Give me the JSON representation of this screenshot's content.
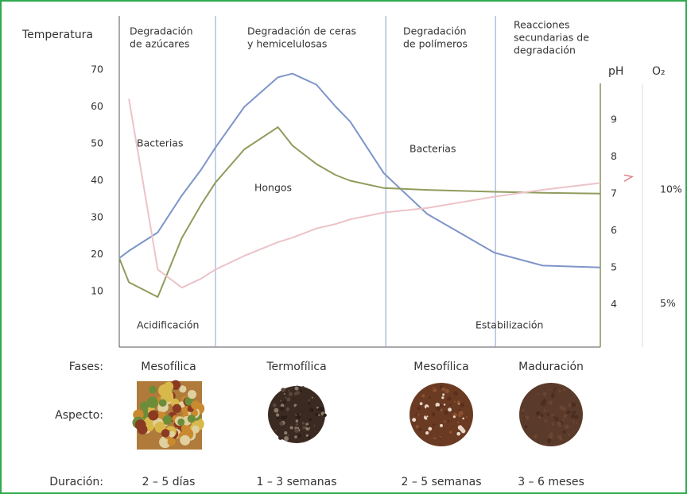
{
  "chart_data": {
    "type": "line",
    "y_label": "Temperatura",
    "y2_label": "pH",
    "y3_label": "O₂",
    "x": [
      0,
      2,
      8,
      13,
      17,
      20,
      26,
      33,
      36,
      41,
      45,
      48,
      55,
      64,
      78,
      88,
      100
    ],
    "xlim": [
      0,
      100
    ],
    "ylim": [
      -5,
      85
    ],
    "yticks": [
      10,
      20,
      30,
      40,
      50,
      60,
      70
    ],
    "y2lim": [
      2.85,
      11.85
    ],
    "y2ticks": [
      4,
      5,
      6,
      7,
      8,
      9
    ],
    "y3lim": [
      3.1,
      17.7
    ],
    "y3ticks": [
      {
        "value": 10,
        "label": "10%"
      },
      {
        "value": 5,
        "label": "5%"
      }
    ],
    "phase_boundaries": [
      20,
      55.4,
      78.2
    ],
    "series": [
      {
        "color": "#7e95c9",
        "values": [
          19,
          21,
          26,
          36,
          43,
          49,
          60,
          68,
          69,
          66,
          60,
          56,
          42,
          31,
          20.5,
          17,
          16.5
        ]
      },
      {
        "color": "#8f9c5c",
        "axis": "y2",
        "values": [
          5.25,
          4.6,
          4.2,
          5.8,
          6.7,
          7.3,
          8.2,
          8.8,
          8.3,
          7.8,
          7.5,
          7.35,
          7.15,
          7.1,
          7.05,
          7.02,
          7.0
        ]
      },
      {
        "color": "#ecc3c8",
        "axis": "y3",
        "values": [
          null,
          14.0,
          6.5,
          5.7,
          6.1,
          6.5,
          7.1,
          7.7,
          7.9,
          8.3,
          8.5,
          8.7,
          9.0,
          9.2,
          9.7,
          10.0,
          10.3
        ]
      }
    ],
    "phase_titles": [
      [
        "Degradación",
        "de azúcares"
      ],
      [
        "Degradación de ceras",
        "y hemicelulosas"
      ],
      [
        "Degradación",
        "de polímeros"
      ],
      [
        "Reacciones",
        "secundarias de",
        "degradación"
      ]
    ],
    "annotations": [
      "Bacterias",
      "Hongos",
      "Bacterias",
      "Acidificación",
      "Estabilización"
    ],
    "row_labels": [
      "Fases:",
      "Aspecto:",
      "Duración:"
    ],
    "phase_names": [
      "Mesofílica",
      "Termofílica",
      "Mesofílica",
      "Maduración"
    ],
    "durations": [
      "2 – 5 días",
      "1 – 3 semanas",
      "2 – 5 semanas",
      "3 – 6 meses"
    ]
  }
}
